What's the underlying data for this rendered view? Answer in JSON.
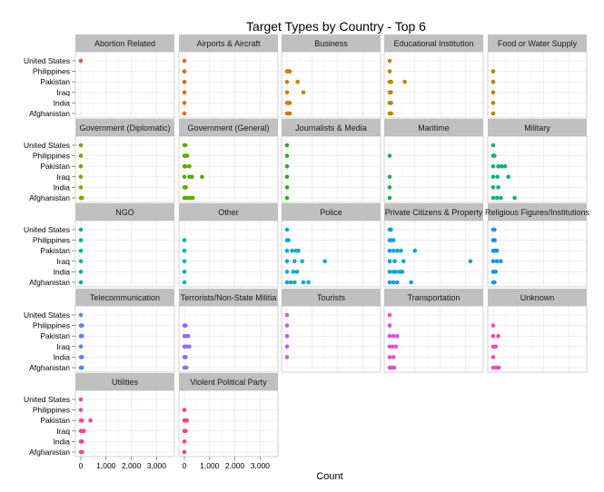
{
  "chart_data": {
    "type": "scatter",
    "title": "Target Types by Country - Top 6",
    "xlabel": "Count",
    "ylabel": "",
    "xlim": [
      -120,
      3400
    ],
    "x_ticks": [
      0,
      1000,
      2000,
      3000
    ],
    "x_tick_labels": [
      "0",
      "1,000",
      "2,000",
      "3,000"
    ],
    "countries": [
      "United States",
      "Philippines",
      "Pakistan",
      "Iraq",
      "India",
      "Afghanistan"
    ],
    "facet_columns": 5,
    "grid": true,
    "panel_background": "#ffffff",
    "strip_background": "#c0c0c0",
    "panels": [
      {
        "name": "Abortion Related",
        "color": "#f0504d",
        "points": [
          {
            "country": "United States",
            "values": [
              0
            ]
          }
        ]
      },
      {
        "name": "Airports & Aircraft",
        "color": "#e06c10",
        "points": [
          {
            "country": "United States",
            "values": [
              0
            ]
          },
          {
            "country": "Philippines",
            "values": [
              0
            ]
          },
          {
            "country": "Pakistan",
            "values": [
              0
            ]
          },
          {
            "country": "Iraq",
            "values": [
              0
            ]
          },
          {
            "country": "India",
            "values": [
              0
            ]
          },
          {
            "country": "Afghanistan",
            "values": [
              0
            ]
          }
        ]
      },
      {
        "name": "Business",
        "color": "#c98000",
        "points": [
          {
            "country": "Philippines",
            "values": [
              0,
              60,
              110
            ]
          },
          {
            "country": "Pakistan",
            "values": [
              0,
              420
            ]
          },
          {
            "country": "Iraq",
            "values": [
              0,
              650
            ]
          },
          {
            "country": "India",
            "values": [
              0,
              60,
              110
            ]
          },
          {
            "country": "Afghanistan",
            "values": [
              0,
              60,
              110
            ]
          }
        ]
      },
      {
        "name": "Educational Institution",
        "color": "#b08a00",
        "points": [
          {
            "country": "United States",
            "values": [
              0
            ]
          },
          {
            "country": "Philippines",
            "values": [
              0
            ]
          },
          {
            "country": "Pakistan",
            "values": [
              0,
              60,
              600
            ]
          },
          {
            "country": "Iraq",
            "values": [
              0,
              50
            ]
          },
          {
            "country": "India",
            "values": [
              0,
              60
            ]
          },
          {
            "country": "Afghanistan",
            "values": [
              0,
              60
            ]
          }
        ]
      },
      {
        "name": "Food or Water Supply",
        "color": "#a09000",
        "points": [
          {
            "country": "Philippines",
            "values": [
              0
            ]
          },
          {
            "country": "Pakistan",
            "values": [
              0
            ]
          },
          {
            "country": "Iraq",
            "values": [
              0
            ]
          },
          {
            "country": "India",
            "values": [
              0
            ]
          },
          {
            "country": "Afghanistan",
            "values": [
              0
            ]
          }
        ]
      },
      {
        "name": "Government (Diplomatic)",
        "color": "#88a000",
        "points": [
          {
            "country": "United States",
            "values": [
              0
            ]
          },
          {
            "country": "Philippines",
            "values": [
              0
            ]
          },
          {
            "country": "Pakistan",
            "values": [
              0
            ]
          },
          {
            "country": "Iraq",
            "values": [
              0
            ]
          },
          {
            "country": "India",
            "values": [
              0
            ]
          },
          {
            "country": "Afghanistan",
            "values": [
              0,
              50
            ]
          }
        ]
      },
      {
        "name": "Government (General)",
        "color": "#60aa00",
        "points": [
          {
            "country": "United States",
            "values": [
              0,
              40
            ]
          },
          {
            "country": "Philippines",
            "values": [
              0,
              60,
              110
            ]
          },
          {
            "country": "Pakistan",
            "values": [
              0,
              50,
              200
            ]
          },
          {
            "country": "Iraq",
            "values": [
              0,
              200,
              300,
              700
            ]
          },
          {
            "country": "India",
            "values": [
              0,
              60
            ]
          },
          {
            "country": "Afghanistan",
            "values": [
              0,
              60,
              150,
              250,
              330
            ]
          }
        ]
      },
      {
        "name": "Journalists & Media",
        "color": "#30aa20",
        "points": [
          {
            "country": "United States",
            "values": [
              0
            ]
          },
          {
            "country": "Philippines",
            "values": [
              0
            ]
          },
          {
            "country": "Pakistan",
            "values": [
              0
            ]
          },
          {
            "country": "Iraq",
            "values": [
              0
            ]
          },
          {
            "country": "India",
            "values": [
              0
            ]
          },
          {
            "country": "Afghanistan",
            "values": [
              0
            ]
          }
        ]
      },
      {
        "name": "Maritime",
        "color": "#1ab060",
        "points": [
          {
            "country": "Philippines",
            "values": [
              0
            ]
          },
          {
            "country": "Iraq",
            "values": [
              0
            ]
          },
          {
            "country": "India",
            "values": [
              0
            ]
          },
          {
            "country": "Afghanistan",
            "values": [
              0
            ]
          }
        ]
      },
      {
        "name": "Military",
        "color": "#10b080",
        "points": [
          {
            "country": "United States",
            "values": [
              0
            ]
          },
          {
            "country": "Philippines",
            "values": [
              0,
              50
            ]
          },
          {
            "country": "Pakistan",
            "values": [
              0,
              200,
              330,
              470
            ]
          },
          {
            "country": "Iraq",
            "values": [
              0,
              170,
              600
            ]
          },
          {
            "country": "India",
            "values": [
              0,
              200
            ]
          },
          {
            "country": "Afghanistan",
            "values": [
              0,
              150,
              300,
              850
            ]
          }
        ]
      },
      {
        "name": "NGO",
        "color": "#10b0a0",
        "points": [
          {
            "country": "United States",
            "values": [
              0
            ]
          },
          {
            "country": "Philippines",
            "values": [
              0
            ]
          },
          {
            "country": "Pakistan",
            "values": [
              0
            ]
          },
          {
            "country": "Iraq",
            "values": [
              0
            ]
          },
          {
            "country": "India",
            "values": [
              0
            ]
          },
          {
            "country": "Afghanistan",
            "values": [
              0
            ]
          }
        ]
      },
      {
        "name": "Other",
        "color": "#10b0c0",
        "points": [
          {
            "country": "Philippines",
            "values": [
              0
            ]
          },
          {
            "country": "Pakistan",
            "values": [
              0
            ]
          },
          {
            "country": "Iraq",
            "values": [
              0
            ]
          },
          {
            "country": "India",
            "values": [
              0
            ]
          },
          {
            "country": "Afghanistan",
            "values": [
              0
            ]
          }
        ]
      },
      {
        "name": "Police",
        "color": "#10a8d8",
        "points": [
          {
            "country": "United States",
            "values": [
              0
            ]
          },
          {
            "country": "Philippines",
            "values": [
              0,
              60
            ]
          },
          {
            "country": "Pakistan",
            "values": [
              0,
              200,
              350,
              450
            ]
          },
          {
            "country": "Iraq",
            "values": [
              0,
              300,
              600,
              1500
            ]
          },
          {
            "country": "India",
            "values": [
              0,
              250,
              400
            ]
          },
          {
            "country": "Afghanistan",
            "values": [
              0,
              150,
              300,
              650,
              850
            ]
          }
        ]
      },
      {
        "name": "Private Citizens & Property",
        "color": "#10a0e0",
        "points": [
          {
            "country": "United States",
            "values": [
              0,
              50
            ]
          },
          {
            "country": "Philippines",
            "values": [
              0,
              60,
              150
            ]
          },
          {
            "country": "Pakistan",
            "values": [
              0,
              150,
              300,
              450,
              1000
            ]
          },
          {
            "country": "Iraq",
            "values": [
              0,
              200,
              550,
              3200
            ]
          },
          {
            "country": "India",
            "values": [
              0,
              150,
              250,
              400,
              500
            ]
          },
          {
            "country": "Afghanistan",
            "values": [
              0,
              150,
              300,
              850
            ]
          }
        ]
      },
      {
        "name": "Religious Figures/Institutions",
        "color": "#2090e8",
        "points": [
          {
            "country": "United States",
            "values": [
              0,
              50
            ]
          },
          {
            "country": "Philippines",
            "values": [
              0,
              60
            ]
          },
          {
            "country": "Pakistan",
            "values": [
              0,
              80,
              150
            ]
          },
          {
            "country": "Iraq",
            "values": [
              0,
              150,
              300
            ]
          },
          {
            "country": "India",
            "values": [
              0,
              100
            ]
          },
          {
            "country": "Afghanistan",
            "values": [
              0,
              50
            ]
          }
        ]
      },
      {
        "name": "Telecommunication",
        "color": "#6080f0",
        "points": [
          {
            "country": "United States",
            "values": [
              0
            ]
          },
          {
            "country": "Philippines",
            "values": [
              0,
              50
            ]
          },
          {
            "country": "Pakistan",
            "values": [
              0,
              50
            ]
          },
          {
            "country": "Iraq",
            "values": [
              0
            ]
          },
          {
            "country": "India",
            "values": [
              0,
              50
            ]
          },
          {
            "country": "Afghanistan",
            "values": [
              0,
              50
            ]
          }
        ]
      },
      {
        "name": "Terrorists/Non-State Militia",
        "color": "#9070f0",
        "points": [
          {
            "country": "Philippines",
            "values": [
              0,
              50
            ]
          },
          {
            "country": "Pakistan",
            "values": [
              0,
              100,
              150
            ]
          },
          {
            "country": "Iraq",
            "values": [
              0,
              100,
              200
            ]
          },
          {
            "country": "India",
            "values": [
              0,
              50
            ]
          },
          {
            "country": "Afghanistan",
            "values": [
              0,
              80
            ]
          }
        ]
      },
      {
        "name": "Tourists",
        "color": "#c060e0",
        "points": [
          {
            "country": "United States",
            "values": [
              0
            ]
          },
          {
            "country": "Philippines",
            "values": [
              0
            ]
          },
          {
            "country": "Pakistan",
            "values": [
              0
            ]
          },
          {
            "country": "Iraq",
            "values": [
              0
            ]
          },
          {
            "country": "India",
            "values": [
              0
            ]
          }
        ]
      },
      {
        "name": "Transportation",
        "color": "#e050d0",
        "points": [
          {
            "country": "United States",
            "values": [
              0
            ]
          },
          {
            "country": "Philippines",
            "values": [
              0
            ]
          },
          {
            "country": "Pakistan",
            "values": [
              0,
              150,
              300
            ]
          },
          {
            "country": "Iraq",
            "values": [
              0,
              120,
              250
            ]
          },
          {
            "country": "India",
            "values": [
              0,
              150
            ]
          },
          {
            "country": "Afghanistan",
            "values": [
              0,
              100,
              180
            ]
          }
        ]
      },
      {
        "name": "Unknown",
        "color": "#e850b0",
        "points": [
          {
            "country": "Philippines",
            "values": [
              0
            ]
          },
          {
            "country": "Pakistan",
            "values": [
              0,
              200
            ]
          },
          {
            "country": "Iraq",
            "values": [
              0,
              100
            ]
          },
          {
            "country": "India",
            "values": [
              0
            ]
          },
          {
            "country": "Afghanistan",
            "values": [
              0,
              120,
              220
            ]
          }
        ]
      },
      {
        "name": "Utilities",
        "color": "#f04890",
        "points": [
          {
            "country": "United States",
            "values": [
              0
            ]
          },
          {
            "country": "Philippines",
            "values": [
              0
            ]
          },
          {
            "country": "Pakistan",
            "values": [
              0,
              50,
              380
            ]
          },
          {
            "country": "Iraq",
            "values": [
              0,
              60,
              120
            ]
          },
          {
            "country": "India",
            "values": [
              0,
              50
            ]
          },
          {
            "country": "Afghanistan",
            "values": [
              0,
              50
            ]
          }
        ]
      },
      {
        "name": "Violent Political Party",
        "color": "#f04870",
        "points": [
          {
            "country": "Philippines",
            "values": [
              0
            ]
          },
          {
            "country": "Pakistan",
            "values": [
              0,
              50,
              100
            ]
          },
          {
            "country": "Iraq",
            "values": [
              0,
              50
            ]
          },
          {
            "country": "India",
            "values": [
              0
            ]
          },
          {
            "country": "Afghanistan",
            "values": [
              0
            ]
          }
        ]
      }
    ]
  }
}
